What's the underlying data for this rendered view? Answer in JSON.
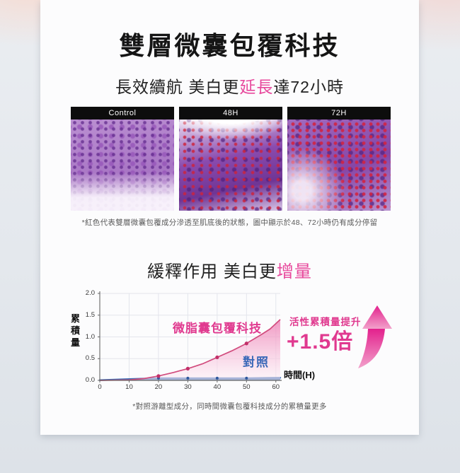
{
  "page": {
    "title": "雙層微囊包覆科技",
    "subtitle": {
      "prefix": "長效續航 美白更",
      "highlight": "延長",
      "suffix": "達72小時"
    },
    "section2": {
      "prefix": "緩釋作用 美白更",
      "highlight": "增量"
    },
    "footnote1": "*紅色代表雙層微囊包覆成分滲透至肌底後的狀態，圖中顯示於48、72小時仍有成分停留",
    "footnote2": "*對照游離型成分，同時間微囊包覆科技成分的累積量更多"
  },
  "images": [
    {
      "label": "Control"
    },
    {
      "label": "48H"
    },
    {
      "label": "72H"
    }
  ],
  "colors": {
    "accent_pink": "#e7489c",
    "deep_pink": "#e0398f",
    "blue": "#3a68b8",
    "pink_line": "#d14b7d",
    "pink_marker": "#c23069",
    "blue_fill": "#3a6cb5",
    "blue_marker": "#2d569c",
    "grid": "#e3e5ec",
    "axis": "#666666"
  },
  "chart_data": {
    "type": "area",
    "title": "",
    "xlabel": "時間(H)",
    "ylabel": "累積量",
    "x_ticks": [
      0,
      10,
      20,
      30,
      40,
      50,
      60
    ],
    "y_ticks": [
      0,
      0.5,
      1,
      1.5,
      2
    ],
    "xlim": [
      0,
      61.5
    ],
    "ylim": [
      0,
      2
    ],
    "grid": true,
    "legend_position": "inside",
    "series": [
      {
        "name": "微脂囊包覆科技",
        "x": [
          0,
          5,
          10,
          15,
          20,
          25,
          30,
          35,
          40,
          45,
          50,
          55,
          58,
          61.5
        ],
        "y": [
          0,
          0.005,
          0.01,
          0.04,
          0.1,
          0.18,
          0.27,
          0.38,
          0.53,
          0.68,
          0.85,
          1.05,
          1.18,
          1.4
        ],
        "markers": {
          "x": [
            20,
            30,
            40,
            50
          ],
          "y": [
            0.1,
            0.27,
            0.53,
            0.85
          ]
        }
      },
      {
        "name": "對照",
        "x": [
          0,
          10,
          20,
          30,
          40,
          50,
          61.5
        ],
        "y": [
          0.005,
          0.03,
          0.05,
          0.05,
          0.05,
          0.05,
          0.06
        ],
        "markers": {
          "x": [
            20,
            30,
            40,
            50
          ],
          "y": [
            0.05,
            0.05,
            0.05,
            0.05
          ]
        }
      }
    ],
    "annotation": {
      "text": "活性累積量提升",
      "value": "+1.5倍"
    }
  }
}
